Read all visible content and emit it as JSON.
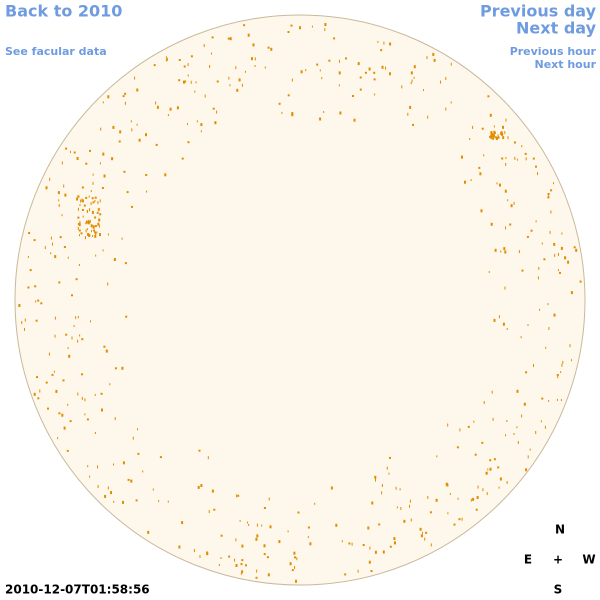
{
  "links": {
    "back": "Back to 2010",
    "facular": "See facular data",
    "previous_day": "Previous day",
    "next_day": "Next day",
    "previous_hour": "Previous hour",
    "next_hour": "Next hour"
  },
  "timestamp": "2010-12-07T01:58:56",
  "compass": {
    "north": "N",
    "east": "E",
    "center": "+",
    "west": "W",
    "south": "S"
  }
}
